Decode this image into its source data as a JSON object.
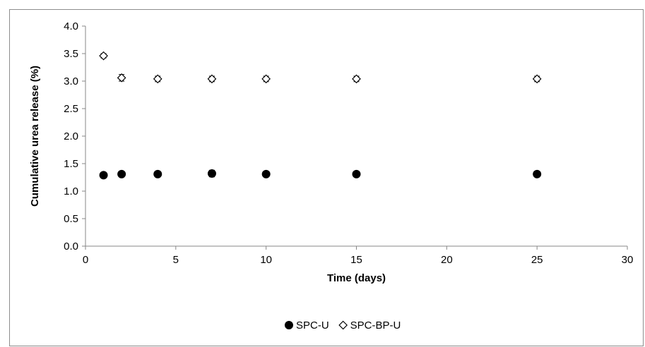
{
  "chart_data": {
    "type": "scatter",
    "xlabel": "Time (days)",
    "ylabel": "Cumulative urea release (%)",
    "xlim": [
      0,
      30
    ],
    "ylim": [
      0,
      4
    ],
    "xticks": [
      0,
      5,
      10,
      15,
      20,
      25,
      30
    ],
    "yticks": [
      0.0,
      0.5,
      1.0,
      1.5,
      2.0,
      2.5,
      3.0,
      3.5,
      4.0
    ],
    "xtick_labels": [
      "0",
      "5",
      "10",
      "15",
      "20",
      "25",
      "30"
    ],
    "ytick_labels": [
      "0.0",
      "0.5",
      "1.0",
      "1.5",
      "2.0",
      "2.5",
      "3.0",
      "3.5",
      "4.0"
    ],
    "grid": false,
    "legend_position": "bottom",
    "series": [
      {
        "name": "SPC-U",
        "marker": "filled-circle",
        "color": "#000000",
        "x": [
          1,
          2,
          4,
          7,
          10,
          15,
          25
        ],
        "y": [
          1.29,
          1.31,
          1.31,
          1.32,
          1.31,
          1.31,
          1.31
        ],
        "error": [
          0.03,
          0.03,
          0.05,
          0.06,
          0.03,
          0.03,
          0.03
        ]
      },
      {
        "name": "SPC-BP-U",
        "marker": "open-diamond",
        "color": "#ffffff",
        "x": [
          1,
          2,
          4,
          7,
          10,
          15,
          25
        ],
        "y": [
          3.46,
          3.06,
          3.04,
          3.04,
          3.04,
          3.04,
          3.04
        ],
        "error": [
          0.04,
          0.06,
          0.05,
          0.05,
          0.05,
          0.05,
          0.05
        ]
      }
    ]
  }
}
